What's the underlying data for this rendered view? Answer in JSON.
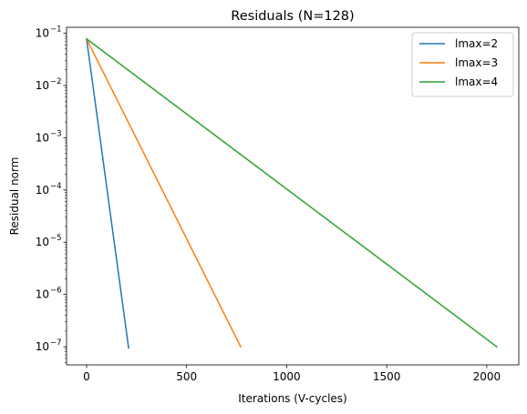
{
  "chart_data": {
    "type": "line",
    "title": "Residuals (N=128)",
    "xlabel": "Iterations (V-cycles)",
    "ylabel": "Residual norm",
    "xlim": [
      -100,
      2160
    ],
    "ylim": [
      4.5e-08,
      0.13
    ],
    "yscale": "log",
    "xticks": [
      0,
      500,
      1000,
      1500,
      2000
    ],
    "xtick_labels": [
      "0",
      "500",
      "1000",
      "1500",
      "2000"
    ],
    "yticks": [
      {
        "value": 1e-07,
        "base": "10",
        "exp": "−7"
      },
      {
        "value": 1e-06,
        "base": "10",
        "exp": "−6"
      },
      {
        "value": 1e-05,
        "base": "10",
        "exp": "−5"
      },
      {
        "value": 0.0001,
        "base": "10",
        "exp": "−4"
      },
      {
        "value": 0.001,
        "base": "10",
        "exp": "−3"
      },
      {
        "value": 0.01,
        "base": "10",
        "exp": "−2"
      },
      {
        "value": 0.1,
        "base": "10",
        "exp": "−1"
      }
    ],
    "grid": false,
    "legend_position": "top-right",
    "series": [
      {
        "name": "lmax=2",
        "color": "#1f77b4",
        "x": [
          0,
          210
        ],
        "y": [
          0.078,
          9.5e-08
        ]
      },
      {
        "name": "lmax=3",
        "color": "#ff7f0e",
        "x": [
          0,
          770
        ],
        "y": [
          0.078,
          1e-07
        ]
      },
      {
        "name": "lmax=4",
        "color": "#2ca02c",
        "x": [
          0,
          2050
        ],
        "y": [
          0.078,
          1e-07
        ]
      }
    ]
  }
}
